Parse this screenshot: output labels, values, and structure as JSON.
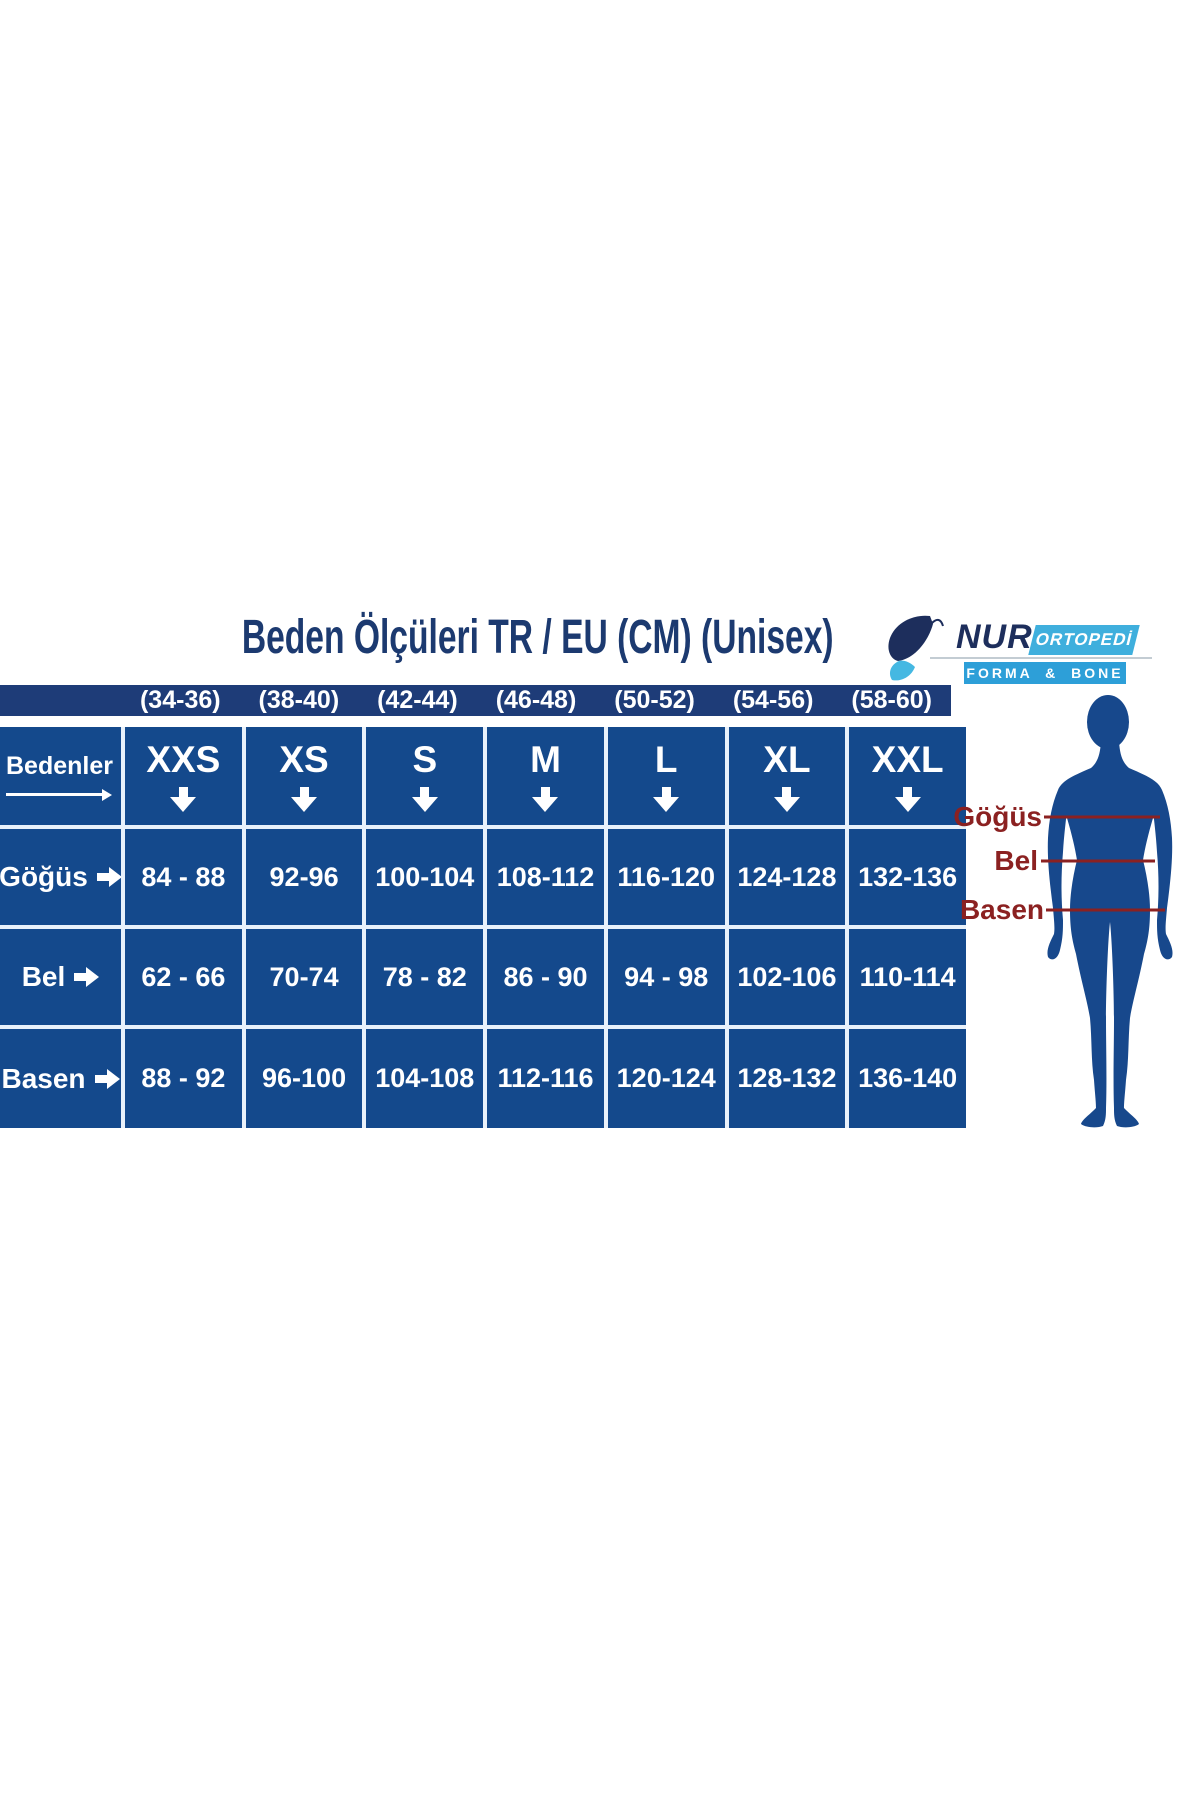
{
  "title": "Beden Ölçüleri   TR / EU (CM)  (Unisex)",
  "logo": {
    "brand": "NUR",
    "badge": "ORTOPEDİ",
    "subtitle": "FORMA & BONE",
    "butterfly_icon": "butterfly-icon"
  },
  "table": {
    "corner_label": "Bedenler"
  },
  "figure_labels": [
    "Göğüs",
    "Bel",
    "Basen"
  ],
  "chart_data": {
    "type": "table",
    "title": "Beden Ölçüleri TR / EU (CM) (Unisex)",
    "eu_sizes": [
      "(34-36)",
      "(38-40)",
      "(42-44)",
      "(46-48)",
      "(50-52)",
      "(54-56)",
      "(58-60)"
    ],
    "columns": [
      "XXS",
      "XS",
      "S",
      "M",
      "L",
      "XL",
      "XXL"
    ],
    "rows": [
      {
        "label": "Göğüs",
        "values": [
          "84 - 88",
          "92-96",
          "100-104",
          "108-112",
          "116-120",
          "124-128",
          "132-136"
        ]
      },
      {
        "label": "Bel",
        "values": [
          "62 - 66",
          "70-74",
          "78 - 82",
          "86 - 90",
          "94 - 98",
          "102-106",
          "110-114"
        ]
      },
      {
        "label": "Basen",
        "values": [
          "88 - 92",
          "96-100",
          "104-108",
          "112-116",
          "120-124",
          "128-132",
          "136-140"
        ]
      }
    ]
  },
  "colors": {
    "table_blue": "#14498c",
    "band_navy": "#1e3c78",
    "title_navy": "#1c3a70",
    "figure_blue": "#17488c",
    "measure_maroon": "#8b2121",
    "badge_teal": "#3fafdd",
    "badge_blue": "#2d9fd8",
    "logo_navy": "#1d2e5c",
    "grid_line_white": "#e9f1fa"
  }
}
